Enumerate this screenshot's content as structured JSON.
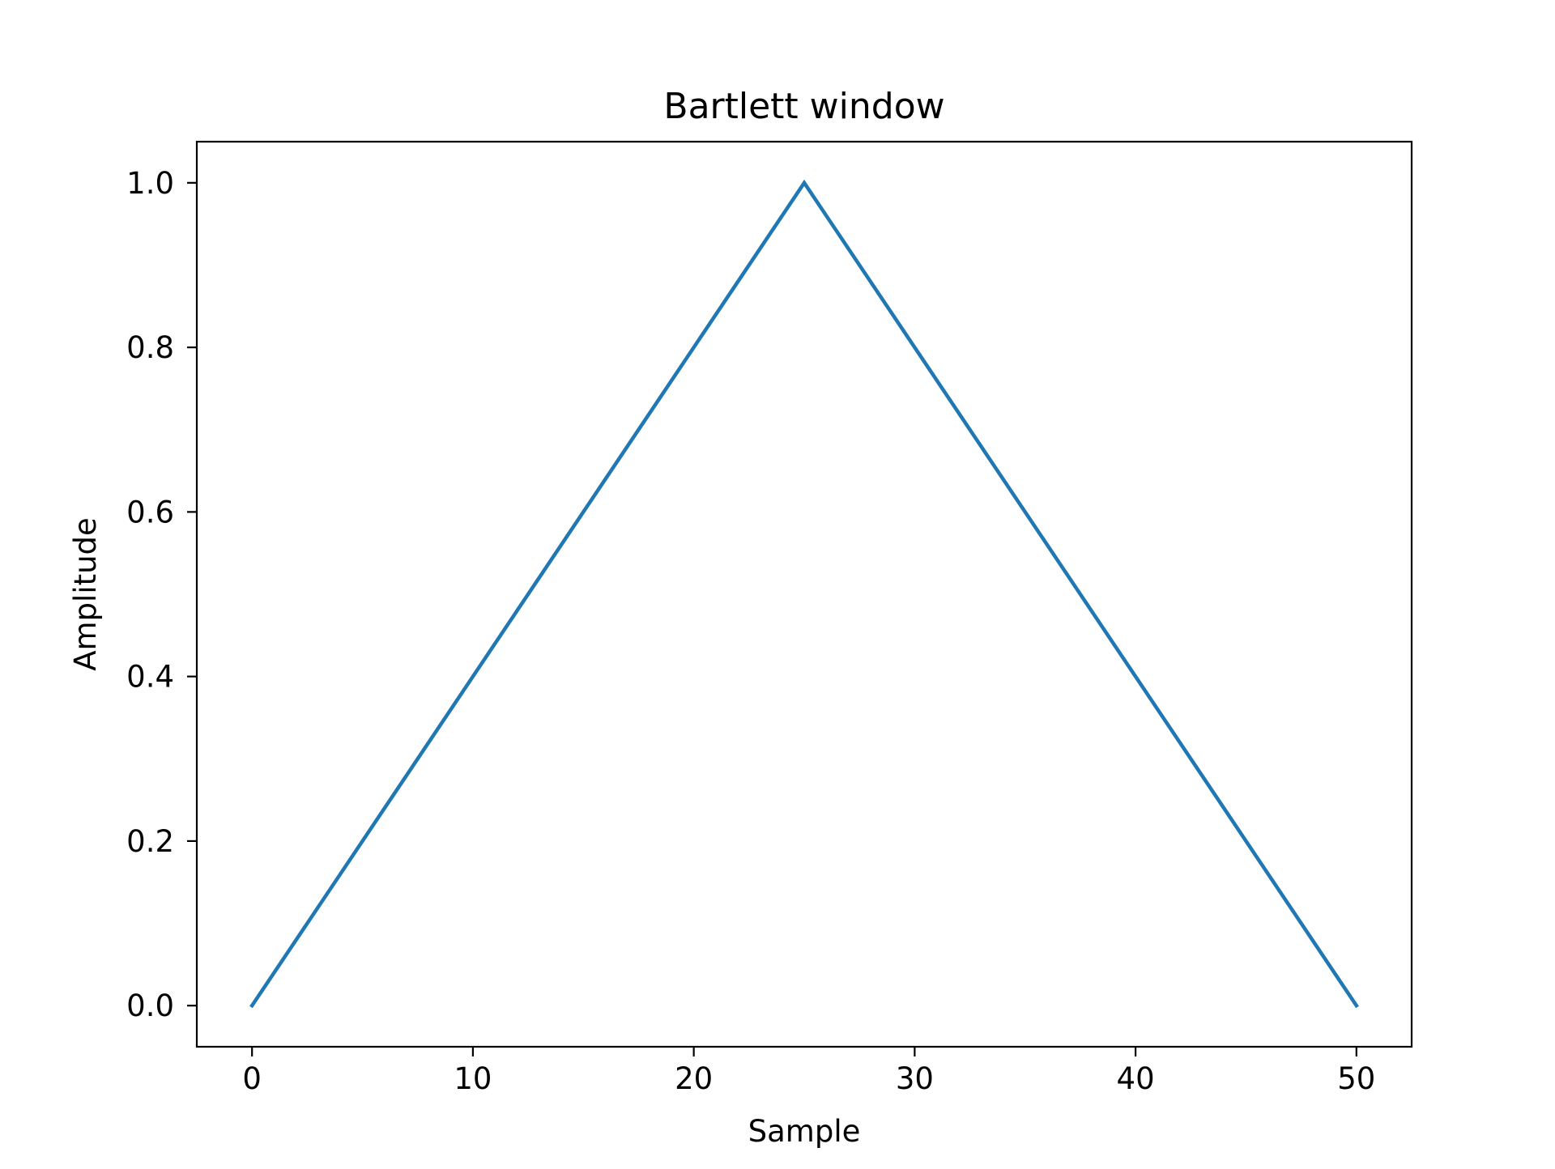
{
  "chart_data": {
    "type": "line",
    "title": "Bartlett window",
    "xlabel": "Sample",
    "ylabel": "Amplitude",
    "xlim": [
      -2.5,
      52.5
    ],
    "ylim": [
      -0.05,
      1.05
    ],
    "x_ticks": [
      0,
      10,
      20,
      30,
      40,
      50
    ],
    "y_ticks": [
      0.0,
      0.2,
      0.4,
      0.6,
      0.8,
      1.0
    ],
    "x_tick_labels": [
      "0",
      "10",
      "20",
      "30",
      "40",
      "50"
    ],
    "y_tick_labels": [
      "0.0",
      "0.2",
      "0.4",
      "0.6",
      "0.8",
      "1.0"
    ],
    "grid": false,
    "legend": "none",
    "series": [
      {
        "color": "#1f77b4",
        "x": [
          0,
          25,
          50
        ],
        "y": [
          0.0,
          1.0,
          0.0
        ]
      }
    ]
  }
}
